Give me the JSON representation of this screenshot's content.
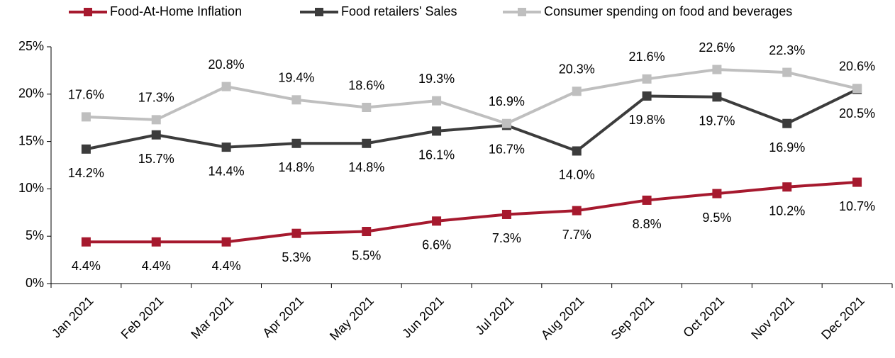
{
  "chart_data": {
    "type": "line",
    "categories": [
      "Jan 2021",
      "Feb 2021",
      "Mar 2021",
      "Apr 2021",
      "May 2021",
      "Jun 2021",
      "Jul 2021",
      "Aug 2021",
      "Sep 2021",
      "Oct 2021",
      "Nov 2021",
      "Dec 2021"
    ],
    "series": [
      {
        "name": "Food-At-Home Inflation",
        "color": "#a6192e",
        "values": [
          4.4,
          4.4,
          4.4,
          5.3,
          5.5,
          6.6,
          7.3,
          7.7,
          8.8,
          9.5,
          10.2,
          10.7
        ],
        "value_labels": [
          "4.4%",
          "4.4%",
          "4.4%",
          "5.3%",
          "5.5%",
          "6.6%",
          "7.3%",
          "7.7%",
          "8.8%",
          "9.5%",
          "10.2%",
          "10.7%"
        ]
      },
      {
        "name": "Food retailers' Sales",
        "color": "#3c3c3c",
        "values": [
          14.2,
          15.7,
          14.4,
          14.8,
          14.8,
          16.1,
          16.7,
          14.0,
          19.8,
          19.7,
          16.9,
          20.5
        ],
        "value_labels": [
          "14.2%",
          "15.7%",
          "14.4%",
          "14.8%",
          "14.8%",
          "16.1%",
          "16.7%",
          "14.0%",
          "19.8%",
          "19.7%",
          "16.9%",
          "20.5%"
        ]
      },
      {
        "name": "Consumer spending on food and beverages",
        "color": "#bfbfbf",
        "values": [
          17.6,
          17.3,
          20.8,
          19.4,
          18.6,
          19.3,
          16.9,
          20.3,
          21.6,
          22.6,
          22.3,
          20.6
        ],
        "value_labels": [
          "17.6%",
          "17.3%",
          "20.8%",
          "19.4%",
          "18.6%",
          "19.3%",
          "16.9%",
          "20.3%",
          "21.6%",
          "22.6%",
          "22.3%",
          "20.6%"
        ]
      }
    ],
    "ylim": [
      0,
      25
    ],
    "yticks": [
      {
        "value": 0,
        "label": "0%"
      },
      {
        "value": 5,
        "label": "5%"
      },
      {
        "value": 10,
        "label": "10%"
      },
      {
        "value": 15,
        "label": "15%"
      },
      {
        "value": 20,
        "label": "20%"
      },
      {
        "value": 25,
        "label": "25%"
      }
    ],
    "grid": false,
    "legend": "top"
  }
}
